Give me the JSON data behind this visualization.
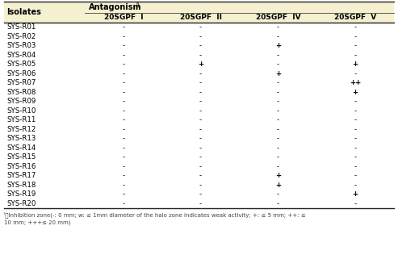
{
  "header_bg": "#f5f0d0",
  "table_bg": "#ffffff",
  "border_color": "#222222",
  "text_color": "#000000",
  "note_color": "#444444",
  "col0_header": "Isolates",
  "col_headers": [
    "20SGPF  I",
    "20SGPF  II",
    "20SGPF  IV",
    "20SGPF  V"
  ],
  "rows": [
    [
      "SYS-R01",
      "-",
      "-",
      "-",
      "-"
    ],
    [
      "SYS-R02",
      "-",
      "-",
      "-",
      "-"
    ],
    [
      "SYS-R03",
      "-",
      "-",
      "+",
      "-"
    ],
    [
      "SYS-R04",
      "-",
      "-",
      "-",
      "-"
    ],
    [
      "SYS-R05",
      "-",
      "+",
      "-",
      "+"
    ],
    [
      "SYS-R06",
      "-",
      "-",
      "+",
      "-"
    ],
    [
      "SYS-R07",
      "-",
      "-",
      "-",
      "++"
    ],
    [
      "SYS-R08",
      "-",
      "-",
      "-",
      "+"
    ],
    [
      "SYS-R09",
      "-",
      "-",
      "-",
      "-"
    ],
    [
      "SYS-R10",
      "-",
      "-",
      "-",
      "-"
    ],
    [
      "SYS-R11",
      "-",
      "-",
      "-",
      "-"
    ],
    [
      "SYS-R12",
      "-",
      "-",
      "-",
      "-"
    ],
    [
      "SYS-R13",
      "-",
      "-",
      "-",
      "-"
    ],
    [
      "SYS-R14",
      "-",
      "-",
      "-",
      "-"
    ],
    [
      "SYS-R15",
      "-",
      "-",
      "-",
      "-"
    ],
    [
      "SYS-R16",
      "-",
      "-",
      "-",
      "-"
    ],
    [
      "SYS-R17",
      "-",
      "-",
      "+",
      "-"
    ],
    [
      "SYS-R18",
      "-",
      "-",
      "+",
      "-"
    ],
    [
      "SYS-R19",
      "-",
      "-",
      "-",
      "+"
    ],
    [
      "SYS-R20",
      "-",
      "-",
      "-",
      "-"
    ]
  ],
  "footnote_line1": "ᴵ⧸Inhibition zone(-: 0 mm; w: ≤ 1mm diameter of the halo zone indicates weak activity; +: ≤ 5 mm; ++: ≤",
  "footnote_line2": "10 mm; +++≤ 20 mm)"
}
